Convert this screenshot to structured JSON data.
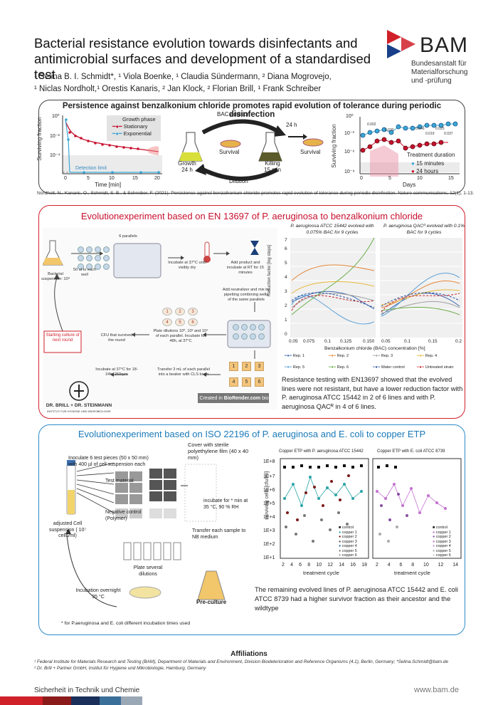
{
  "header": {
    "title": "Bacterial resistance evolution towards disinfectants and antimicrobial surfaces and development of a standardised test",
    "authors_line1": "¹ Selina B. I. Schmidt*, ¹ Viola Boenke, ¹ Claudia Sündermann, ² Diana Mogrovejo,",
    "authors_line2": "¹ Niclas Nordholt,¹ Orestis Kanaris, ² Jan Klock, ² Florian Brill, ¹ Frank Schreiber",
    "logo_name": "BAM",
    "logo_sub1": "Bundesanstalt für",
    "logo_sub2": "Materialforschung",
    "logo_sub3": "und -prüfung"
  },
  "section1": {
    "heading": "Persistence against benzalkonium chloride promotes rapid evolution of tolerance during periodic disinfection",
    "citation": "Nordholt, N., Kanaris, O., Schmidt, S. B., & Schreiber, F. (2021). Persistence against benzalkonium chloride promotes rapid evolution of tolerance during periodic disinfection. Nature communications, 12(1), 1-13.",
    "left_chart": {
      "ylabel": "Surviving fraction",
      "xlabel": "Time [min]",
      "legend_title": "Growth phase",
      "legend": [
        "Stationary",
        "Exponential"
      ],
      "detection": "Detection limit",
      "xticks": [
        "0",
        "5",
        "10",
        "15",
        "20"
      ],
      "yticks": [
        "10⁰",
        "10⁻²",
        "10⁻⁴"
      ]
    },
    "cycle": {
      "bac": "BAC addition",
      "growth": "Growth",
      "growth_t": "24 h",
      "survival1": "Survival",
      "killing": "Killing",
      "killing_t": "15 min",
      "h24": "24 h",
      "survival2": "Survival",
      "dilution": "Dilution"
    },
    "right_chart": {
      "ylabel": "Surviving fraction",
      "xlabel": "Days",
      "legend_title": "Treatment duration",
      "legend": [
        "15 minutes",
        "24 hours"
      ],
      "xticks": [
        "0",
        "5",
        "10",
        "15"
      ],
      "yticks": [
        "10⁰",
        "10⁻³",
        "10⁻⁶",
        "10⁻⁹"
      ],
      "pvals": [
        "0.002",
        "0.030",
        "0.046",
        "0.019",
        "0.025",
        "0.037"
      ]
    }
  },
  "section2": {
    "heading": "Evolutionexperiment based on EN 13697 of P. aeruginosa to benzalkonium chloride",
    "steps": {
      "suspension": "Bacterial suspension: 10⁸",
      "pipette": "50 ul to each well",
      "parallels": "6 parallels",
      "incubate": "Incubate at 37°C until visibly dry",
      "neutralizer": "Add product and incubate at RT for 15 minutes",
      "mix": "Add neutralizer and mix by pipetting combining wells of the same parallels",
      "plate": "Plate dilutions 10⁰, 10² and 10⁴ of each parallel. Incubate for 48h, at 37°C",
      "cfu": "CFU that survived the round",
      "transfer": "Transfer 3 mL of each parallel into a beaker with CLS broth",
      "incubate2": "Incubate at 37°C for 18-24h, 250rpm",
      "starting": "Starting culture of next round",
      "biorender_prefix": "Created in",
      "biorender": "BioRender.com",
      "bio": "bio"
    },
    "brill": "DR. BRILL + DR. STEINMANN",
    "brill_sub": "INSTITUT FÜR HYGIENE UND MIKROBIOLOGIE",
    "chart": {
      "title_left": "P. aeruginosa ATCC 15442 evolved with 0.075% BAC for 9 cycles",
      "title_right": "P. aeruginosa QACᴿ evolved with 0.1% BAC for 9 cycles",
      "ylabel": "Reduction factor [log steps]",
      "xlabel": "Benzalkonium chlorde (BAC) concentration [%]",
      "yticks": [
        "0",
        "1",
        "2",
        "3",
        "4",
        "5",
        "6",
        "7"
      ],
      "xticks_left": [
        "0.05",
        "0.075",
        "0.1",
        "0.125",
        "0.150"
      ],
      "xticks_right": [
        "0.05",
        "0.1",
        "0.15",
        "0.2"
      ],
      "legend": [
        "Rep. 1",
        "Rep. 2",
        "Rep. 3",
        "Rep. 4",
        "Rep. 5",
        "Rep. 6",
        "Water control",
        "Untreated strain"
      ],
      "colors": [
        "#3a66b0",
        "#e3873a",
        "#a0a0a0",
        "#e8b93a",
        "#5a9fd6",
        "#6aad4a",
        "#2a4fa0",
        "#c0232b"
      ]
    },
    "text": "Resistance testing with EN13697 showed that the evolved lines were not resistant, but have a lower reduction factor with P. aeruginosa ATCC 15442 in 2 of 6 lines and with P. aeruginosa QACᴿ in 4 of 6 lines."
  },
  "section3": {
    "heading": "Evolutionexperiment based on ISO 22196 of P. aeruginosa and E. coli to copper ETP",
    "steps": {
      "cover": "Cover with sterile polyethylene film (40 x 40 mm)",
      "inoculate": "Inoculate 6 test pieces (50 x 50 mm) with 400 µl of cell suspension each",
      "test_material": "Test material",
      "negative": "Negative control (Polymer)",
      "adjusted": "adjusted Cell suspension ( 10⁷ cells/ml)",
      "incubate": "incubate for * min at 35 °C, 90 % RH",
      "transfer": "Transfer each sample to NB medium",
      "plate": "Plate several dilutions",
      "incubation": "Incubation overnight 35 °C",
      "preculture": "Pre-culture",
      "footnote": "* for P.aeruginosa and E. coli different incubation times used"
    },
    "chart": {
      "title_left": "Copper ETP with P. aeruginosa ATCC 15442",
      "title_right": "Copper ETP with E. coli ATCC 8739",
      "ylabel": "surviving cells [cfu/ml]",
      "xlabel": "treatment cycle",
      "yticks": [
        "1E+1",
        "1E+2",
        "1E+3",
        "1E+4",
        "1E+5",
        "1E+6",
        "1E+7",
        "1E+8"
      ],
      "xticks_left": [
        "2",
        "4",
        "6",
        "8",
        "10",
        "12",
        "14",
        "16",
        "18"
      ],
      "xticks_right": [
        "2",
        "4",
        "6",
        "8",
        "10",
        "12",
        "14"
      ],
      "legend": [
        "control",
        "copper 1",
        "copper 2",
        "copper 3",
        "copper 4",
        "copper 5",
        "copper 6"
      ]
    },
    "text": "The remaining evolved lines of P. aeruginosa ATCC 15442 and E. coli ATCC 8739  had a higher survivor fraction as their ancestor and the wildtype"
  },
  "footer": {
    "affil_heading": "Affiliations",
    "affil1": "¹ Federal Institute for Materials Research and Testing (BAM), Department of Materials and Environment, Division Biodeterioration and Reference Organisms (4.1), Berlin, Germany; *Selina.Schmidt@bam.de",
    "affil2": "² Dr. Brill + Partner GmbH, Institut für Hygiene und Mikrobiologie, Hamburg, Germany",
    "slogan": "Sicherheit in Technik und Chemie",
    "url": "www.bam.de"
  }
}
